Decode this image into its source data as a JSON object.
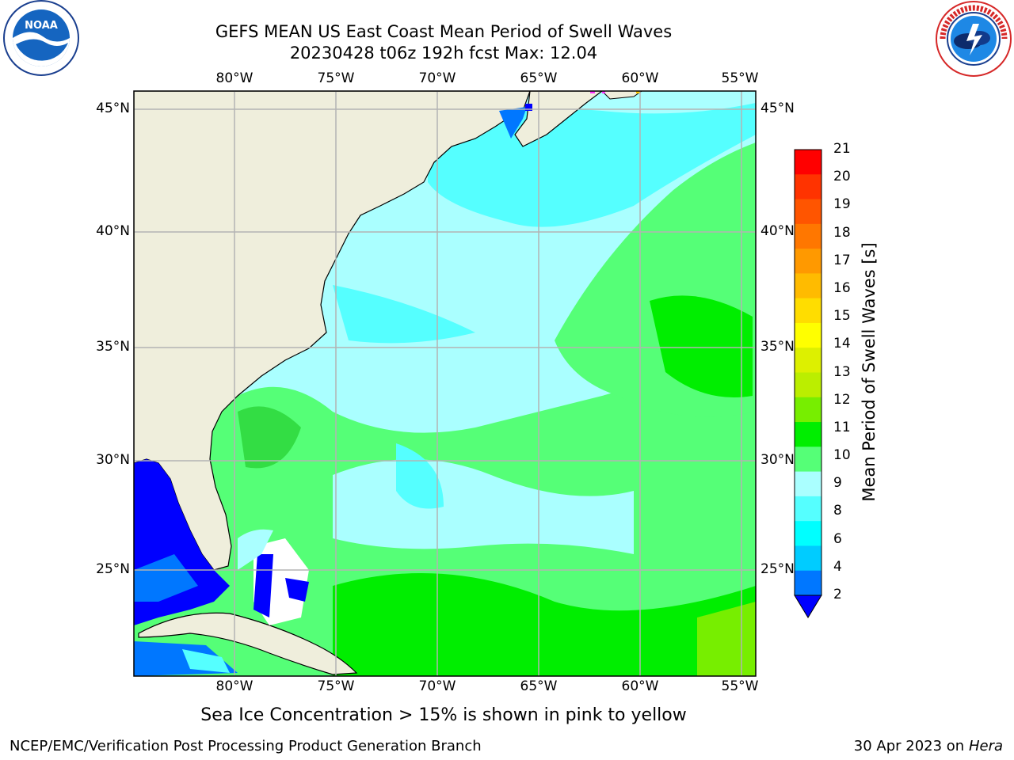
{
  "header": {
    "title_line1": "GEFS MEAN US East Coast Mean Period of Swell Waves",
    "title_line2": "20230428 t06z 192h fcst   Max: 12.04"
  },
  "logos": {
    "left": {
      "name": "noaa-logo",
      "text": "NOAA"
    },
    "right": {
      "name": "nws-logo",
      "text": "NATIONAL WEATHER SERVICE"
    }
  },
  "map": {
    "lon_labels": [
      "80°W",
      "75°W",
      "70°W",
      "65°W",
      "60°W",
      "55°W"
    ],
    "lat_labels": [
      "45°N",
      "40°N",
      "35°N",
      "30°N",
      "25°N"
    ],
    "land_color": "#efeedc",
    "grid_color": "#b3b3b3"
  },
  "colorbar": {
    "title": "Mean Period of Swell Waves [s]",
    "ticks": [
      "21",
      "20",
      "19",
      "18",
      "17",
      "16",
      "15",
      "14",
      "13",
      "12",
      "11",
      "10",
      "9",
      "8",
      "6",
      "4",
      "2"
    ],
    "colors": [
      "#ff0000",
      "#ff3300",
      "#ff5500",
      "#ff7700",
      "#ff9900",
      "#ffbb00",
      "#ffdd00",
      "#ffff00",
      "#ddf000",
      "#bbee00",
      "#77ee00",
      "#00ee00",
      "#55ff77",
      "#aaffff",
      "#55ffff",
      "#00ffff",
      "#00ccff",
      "#0077ff"
    ],
    "under_color": "#0000ff"
  },
  "note": "Sea Ice Concentration > 15% is shown in pink to yellow",
  "footer": {
    "left": "NCEP/EMC/Verification Post Processing Product Generation Branch",
    "right_date": "30 Apr 2023 on ",
    "right_host": "Hera"
  }
}
